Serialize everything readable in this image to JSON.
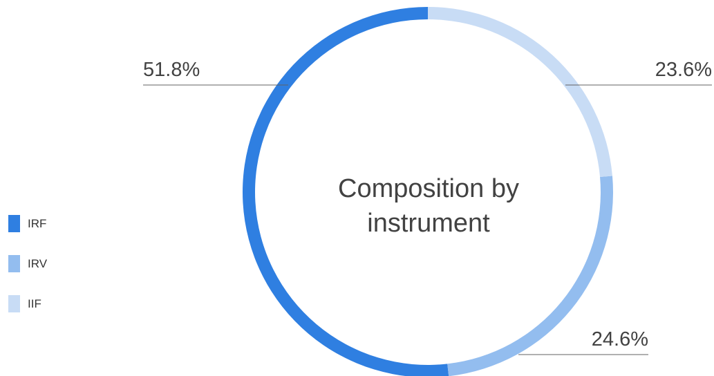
{
  "chart_data": {
    "type": "pie",
    "variant": "donut",
    "title": "Composition by instrument",
    "title_lines": [
      "Composition by",
      "instrument"
    ],
    "legend_position": "left",
    "series": [
      {
        "name": "IRF",
        "value": 51.8,
        "label": "51.8%",
        "color": "#2f7fe1"
      },
      {
        "name": "IRV",
        "value": 24.6,
        "label": "24.6%",
        "color": "#93bdef"
      },
      {
        "name": "IIF",
        "value": 23.6,
        "label": "23.6%",
        "color": "#c8dcf5"
      }
    ]
  }
}
